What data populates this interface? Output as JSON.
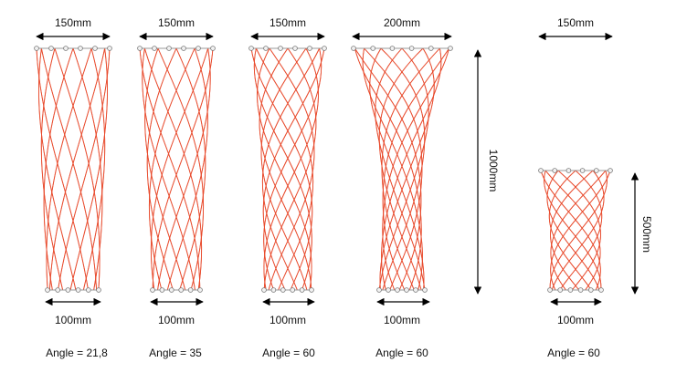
{
  "colors": {
    "lattice": "#e8492b",
    "node_fill": "#f2f2f2",
    "node_stroke": "#777777",
    "arrow": "#000000"
  },
  "models": [
    {
      "id": "m1",
      "top_width": "150mm",
      "bottom_width": "100mm",
      "angle": "Angle = 21,8"
    },
    {
      "id": "m2",
      "top_width": "150mm",
      "bottom_width": "100mm",
      "angle": "Angle = 35"
    },
    {
      "id": "m3",
      "top_width": "150mm",
      "bottom_width": "100mm",
      "angle": "Angle = 60"
    },
    {
      "id": "m4",
      "top_width": "200mm",
      "bottom_width": "100mm",
      "angle": "Angle = 60",
      "height": "1000mm"
    },
    {
      "id": "m5",
      "top_width": "150mm",
      "bottom_width": "100mm",
      "angle": "Angle = 60",
      "height": "500mm"
    }
  ]
}
